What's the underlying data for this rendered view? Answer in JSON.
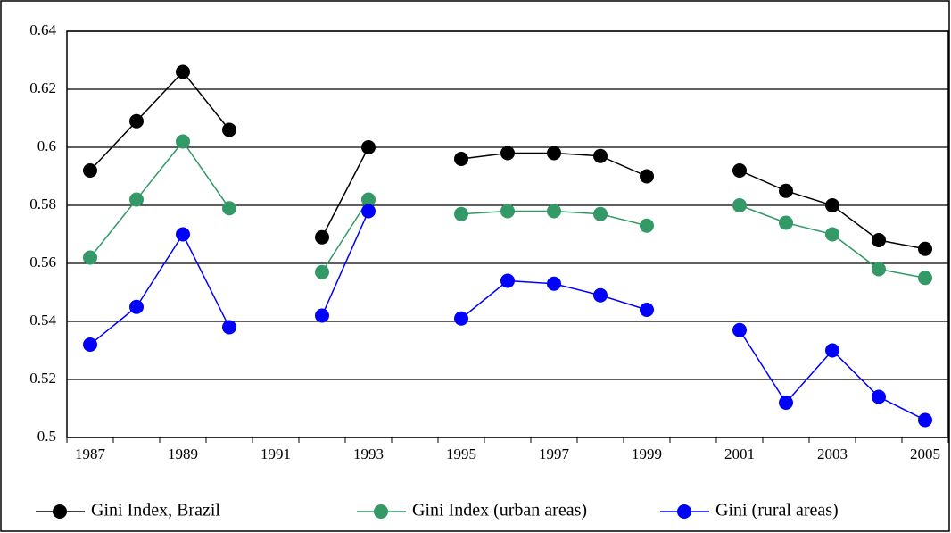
{
  "chart_data": {
    "type": "line",
    "categories": [
      "1987",
      null,
      "1989",
      null,
      "1991",
      null,
      "1993",
      null,
      "1995",
      null,
      "1997",
      null,
      "1999",
      null,
      "2001",
      null,
      "2003",
      null,
      "2005"
    ],
    "series": [
      {
        "name": "Gini Index, Brazil",
        "color": "#000000",
        "values": [
          0.592,
          0.609,
          0.626,
          0.606,
          null,
          0.569,
          0.6,
          null,
          0.596,
          0.598,
          0.598,
          0.597,
          0.59,
          null,
          0.592,
          0.585,
          0.58,
          0.568,
          0.565
        ]
      },
      {
        "name": "Gini Index (urban areas)",
        "color": "#339966",
        "values": [
          0.562,
          0.582,
          0.602,
          0.579,
          null,
          0.557,
          0.582,
          null,
          0.577,
          0.578,
          0.578,
          0.577,
          0.573,
          null,
          0.58,
          0.574,
          0.57,
          0.558,
          0.555
        ]
      },
      {
        "name": "Gini (rural areas)",
        "color": "#0000ff",
        "values": [
          0.532,
          0.545,
          0.57,
          0.538,
          null,
          0.542,
          0.578,
          null,
          0.541,
          0.554,
          0.553,
          0.549,
          0.544,
          null,
          0.537,
          0.512,
          0.53,
          0.514,
          0.506
        ]
      }
    ],
    "ylim": [
      0.5,
      0.64
    ],
    "yticks": [
      0.5,
      0.52,
      0.54,
      0.56,
      0.58,
      0.6,
      0.62,
      0.64
    ],
    "grid": true,
    "legend": "bottom"
  }
}
